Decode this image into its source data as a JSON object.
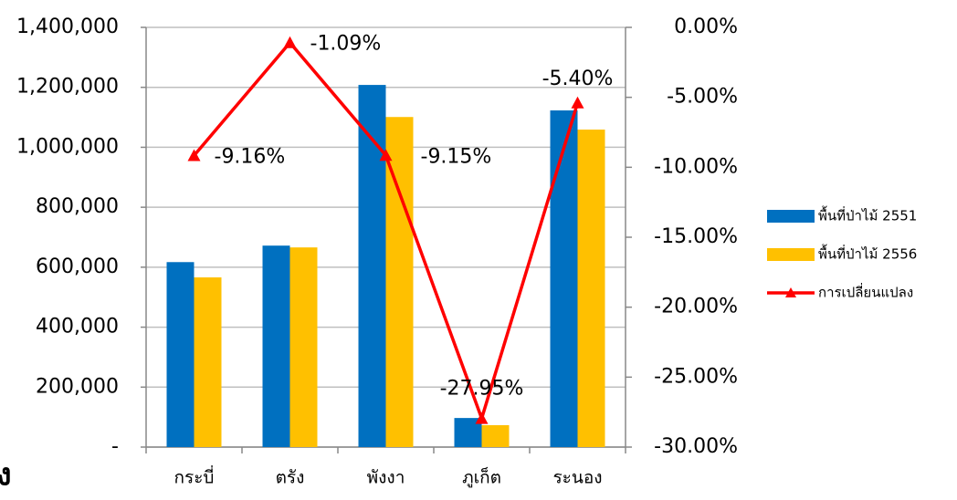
{
  "chart_data": {
    "type": "bar_line",
    "categories": [
      "กระบี่",
      "ตรัง",
      "พังงา",
      "ภูเก็ต",
      "ระนอง"
    ],
    "series": [
      {
        "name": "พื้นที่ป่าไม้ 2551",
        "color": "#0070c0",
        "type": "bar",
        "values": [
          617000,
          672000,
          1208000,
          97000,
          1123000
        ]
      },
      {
        "name": "พื้นที่ป่าไม้ 2556",
        "color": "#ffc000",
        "type": "bar",
        "values": [
          566000,
          666000,
          1101000,
          73000,
          1059000
        ]
      },
      {
        "name": "การเปลี่ยนแปลง",
        "color": "#ff0000",
        "type": "line",
        "axis": "y2",
        "values": [
          -9.16,
          -1.09,
          -9.15,
          -27.95,
          -5.4
        ],
        "value_labels": [
          "-9.16%",
          "-1.09%",
          "-9.15%",
          "-27.95%",
          "-5.40%"
        ]
      }
    ],
    "ylim": [
      0,
      1400000
    ],
    "yticks": [
      {
        "value": 0,
        "label": "-"
      },
      {
        "value": 200000,
        "label": "200,000"
      },
      {
        "value": 400000,
        "label": "400,000"
      },
      {
        "value": 600000,
        "label": "600,000"
      },
      {
        "value": 800000,
        "label": "800,000"
      },
      {
        "value": 1000000,
        "label": "1,000,000"
      },
      {
        "value": 1200000,
        "label": "1,200,000"
      },
      {
        "value": 1400000,
        "label": "1,400,000"
      }
    ],
    "y2lim": [
      -30,
      0
    ],
    "y2ticks": [
      {
        "value": -30,
        "label": "-30.00%"
      },
      {
        "value": -25,
        "label": "-25.00%"
      },
      {
        "value": -20,
        "label": "-20.00%"
      },
      {
        "value": -15,
        "label": "-15.00%"
      },
      {
        "value": -10,
        "label": "-10.00%"
      },
      {
        "value": -5,
        "label": "-5.00%"
      },
      {
        "value": 0,
        "label": "0.00%"
      }
    ],
    "grid": true,
    "legend": "right",
    "fragment": "ง"
  }
}
